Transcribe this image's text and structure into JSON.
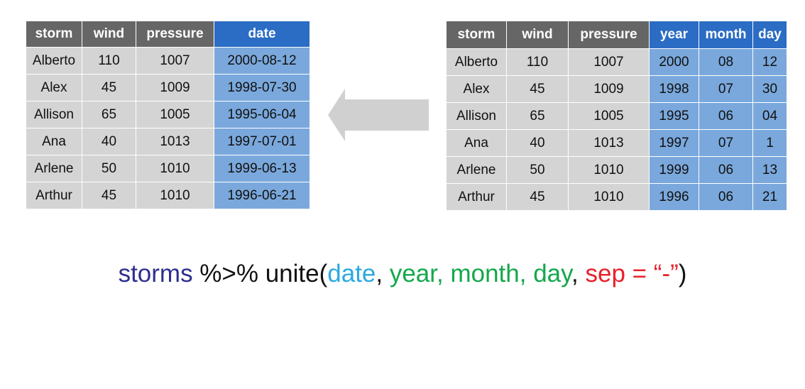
{
  "left_table": {
    "headers": [
      "storm",
      "wind",
      "pressure",
      "date"
    ],
    "rows": [
      [
        "Alberto",
        "110",
        "1007",
        "2000-08-12"
      ],
      [
        "Alex",
        "45",
        "1009",
        "1998-07-30"
      ],
      [
        "Allison",
        "65",
        "1005",
        "1995-06-04"
      ],
      [
        "Ana",
        "40",
        "1013",
        "1997-07-01"
      ],
      [
        "Arlene",
        "50",
        "1010",
        "1999-06-13"
      ],
      [
        "Arthur",
        "45",
        "1010",
        "1996-06-21"
      ]
    ]
  },
  "right_table": {
    "headers": [
      "storm",
      "wind",
      "pressure",
      "year",
      "month",
      "day"
    ],
    "rows": [
      [
        "Alberto",
        "110",
        "1007",
        "2000",
        "08",
        "12"
      ],
      [
        "Alex",
        "45",
        "1009",
        "1998",
        "07",
        "30"
      ],
      [
        "Allison",
        "65",
        "1005",
        "1995",
        "06",
        "04"
      ],
      [
        "Ana",
        "40",
        "1013",
        "1997",
        "07",
        "1"
      ],
      [
        "Arlene",
        "50",
        "1010",
        "1999",
        "06",
        "13"
      ],
      [
        "Arthur",
        "45",
        "1010",
        "1996",
        "06",
        "21"
      ]
    ]
  },
  "code": {
    "df": "storms",
    "pipe": " %>% ",
    "func": "unite(",
    "new_col": "date",
    "sep1": ", ",
    "col1": "year",
    "sep2": ", ",
    "col2": "month",
    "sep3": ", ",
    "col3": "day",
    "sep4": ", ",
    "sep_arg": "sep = “-”",
    "close": ")"
  },
  "colors": {
    "gray_header": "#666666",
    "blue_header": "#2b6cc4",
    "gray_cell": "#d4d4d4",
    "blue_cell": "#7aa8dc",
    "arrow": "#d0d0d0"
  }
}
